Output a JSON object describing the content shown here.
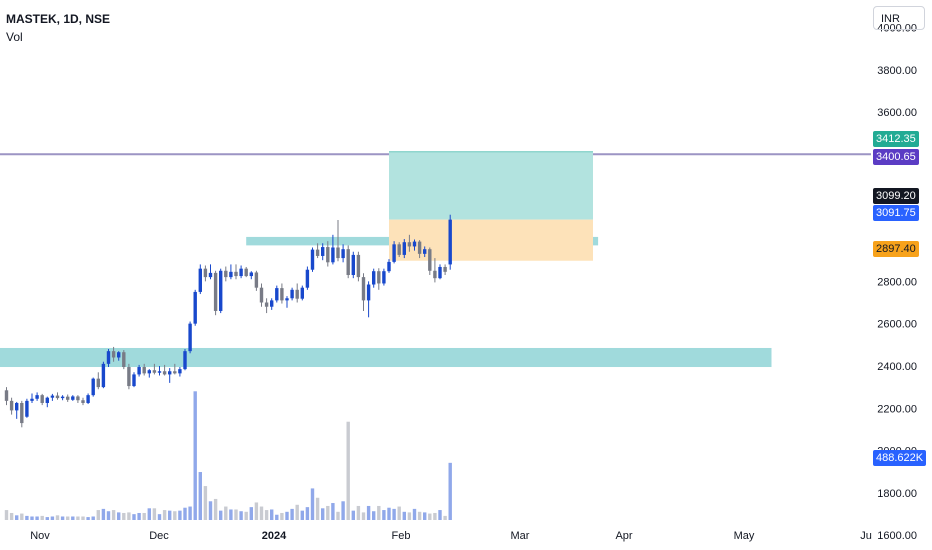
{
  "legend": {
    "symbol": "MASTEK, 1D, NSE",
    "volume_label": "Vol"
  },
  "currency": "INR",
  "price_axis": {
    "ticks": [
      "4000.00",
      "3800.00",
      "3600.00",
      "2800.00",
      "2600.00",
      "2400.00",
      "2200.00",
      "2000.00",
      "1800.00",
      "1600.00"
    ],
    "tick_values": [
      4000,
      3800,
      3600,
      2800,
      2600,
      2400,
      2200,
      2000,
      1800,
      1600
    ]
  },
  "time_axis": {
    "labels": [
      "Nov",
      "Dec",
      "2024",
      "Feb",
      "Mar",
      "Apr",
      "May",
      "Ju"
    ]
  },
  "badges": {
    "target": "3412.35",
    "line": "3400.65",
    "close": "3099.20",
    "last": "3091.75",
    "stop": "2897.40",
    "volume": "488.622K"
  },
  "colors": {
    "up": "#1848cc",
    "down": "#787b86",
    "vol_up": "#90a8ea",
    "vol_down": "#c9cbd1",
    "zone": "#8fd4d6",
    "profit": "#b2e3df",
    "loss": "#fde2b9",
    "line": "#9c94c4"
  },
  "chart_data": {
    "type": "candlestick",
    "title": "MASTEK, 1D, NSE",
    "ylim": [
      1530,
      4130
    ],
    "candles": [
      [
        2285,
        2300,
        2215,
        2235
      ],
      [
        2235,
        2250,
        2170,
        2190
      ],
      [
        2190,
        2230,
        2150,
        2225
      ],
      [
        2225,
        2235,
        2110,
        2130
      ],
      [
        2160,
        2245,
        2155,
        2235
      ],
      [
        2235,
        2270,
        2225,
        2245
      ],
      [
        2245,
        2275,
        2235,
        2262
      ],
      [
        2262,
        2268,
        2215,
        2225
      ],
      [
        2225,
        2255,
        2205,
        2250
      ],
      [
        2250,
        2268,
        2235,
        2260
      ],
      [
        2260,
        2275,
        2240,
        2248
      ],
      [
        2248,
        2262,
        2238,
        2255
      ],
      [
        2255,
        2265,
        2230,
        2240
      ],
      [
        2240,
        2262,
        2235,
        2256
      ],
      [
        2256,
        2262,
        2225,
        2238
      ],
      [
        2238,
        2250,
        2215,
        2225
      ],
      [
        2225,
        2270,
        2220,
        2262
      ],
      [
        2262,
        2345,
        2255,
        2340
      ],
      [
        2340,
        2370,
        2290,
        2300
      ],
      [
        2300,
        2420,
        2295,
        2410
      ],
      [
        2410,
        2480,
        2395,
        2470
      ],
      [
        2470,
        2490,
        2420,
        2440
      ],
      [
        2440,
        2470,
        2425,
        2465
      ],
      [
        2465,
        2475,
        2385,
        2395
      ],
      [
        2395,
        2410,
        2290,
        2305
      ],
      [
        2305,
        2370,
        2300,
        2360
      ],
      [
        2360,
        2405,
        2350,
        2395
      ],
      [
        2395,
        2410,
        2355,
        2365
      ],
      [
        2365,
        2385,
        2345,
        2380
      ],
      [
        2380,
        2410,
        2360,
        2368
      ],
      [
        2368,
        2400,
        2355,
        2375
      ],
      [
        2375,
        2405,
        2355,
        2360
      ],
      [
        2360,
        2390,
        2320,
        2375
      ],
      [
        2375,
        2410,
        2360,
        2365
      ],
      [
        2365,
        2395,
        2350,
        2385
      ],
      [
        2385,
        2480,
        2380,
        2470
      ],
      [
        2470,
        2610,
        2460,
        2600
      ],
      [
        2600,
        2760,
        2590,
        2750
      ],
      [
        2750,
        2880,
        2740,
        2860
      ],
      [
        2860,
        2875,
        2800,
        2820
      ],
      [
        2820,
        2880,
        2810,
        2840
      ],
      [
        2840,
        2850,
        2640,
        2660
      ],
      [
        2660,
        2860,
        2650,
        2850
      ],
      [
        2850,
        2870,
        2800,
        2820
      ],
      [
        2820,
        2880,
        2810,
        2845
      ],
      [
        2845,
        2880,
        2810,
        2825
      ],
      [
        2825,
        2875,
        2815,
        2860
      ],
      [
        2860,
        2868,
        2820,
        2825
      ],
      [
        2825,
        2848,
        2810,
        2842
      ],
      [
        2842,
        2850,
        2755,
        2770
      ],
      [
        2770,
        2790,
        2680,
        2700
      ],
      [
        2700,
        2720,
        2650,
        2680
      ],
      [
        2680,
        2720,
        2665,
        2710
      ],
      [
        2710,
        2780,
        2700,
        2768
      ],
      [
        2768,
        2790,
        2695,
        2710
      ],
      [
        2710,
        2730,
        2675,
        2720
      ],
      [
        2720,
        2770,
        2710,
        2760
      ],
      [
        2760,
        2790,
        2700,
        2718
      ],
      [
        2718,
        2780,
        2710,
        2770
      ],
      [
        2770,
        2870,
        2760,
        2855
      ],
      [
        2855,
        2960,
        2845,
        2950
      ],
      [
        2950,
        2980,
        2910,
        2920
      ],
      [
        2920,
        2980,
        2900,
        2962
      ],
      [
        2962,
        2990,
        2870,
        2890
      ],
      [
        2890,
        3020,
        2880,
        2960
      ],
      [
        2960,
        3090,
        2895,
        2910
      ],
      [
        2910,
        2975,
        2890,
        2952
      ],
      [
        2952,
        2970,
        2815,
        2830
      ],
      [
        2830,
        2940,
        2815,
        2925
      ],
      [
        2925,
        2940,
        2800,
        2820
      ],
      [
        2820,
        2838,
        2660,
        2710
      ],
      [
        2710,
        2800,
        2630,
        2785
      ],
      [
        2785,
        2860,
        2770,
        2848
      ],
      [
        2848,
        2862,
        2760,
        2790
      ],
      [
        2790,
        2860,
        2780,
        2848
      ],
      [
        2848,
        2905,
        2840,
        2892
      ],
      [
        2892,
        2990,
        2885,
        2975
      ],
      [
        2975,
        2985,
        2915,
        2925
      ],
      [
        2925,
        3000,
        2910,
        2985
      ],
      [
        2985,
        3020,
        2940,
        2965
      ],
      [
        2965,
        2998,
        2945,
        2988
      ],
      [
        2988,
        2995,
        2910,
        2930
      ],
      [
        2930,
        2965,
        2915,
        2952
      ],
      [
        2952,
        2960,
        2830,
        2850
      ],
      [
        2850,
        2910,
        2795,
        2815
      ],
      [
        2815,
        2880,
        2810,
        2868
      ],
      [
        2868,
        2880,
        2830,
        2845
      ],
      [
        2880,
        3115,
        2855,
        3091.75
      ]
    ],
    "volumes_k": [
      85,
      60,
      40,
      55,
      35,
      30,
      30,
      35,
      25,
      30,
      40,
      30,
      30,
      30,
      30,
      30,
      25,
      30,
      85,
      95,
      75,
      85,
      65,
      60,
      65,
      50,
      60,
      60,
      100,
      100,
      50,
      85,
      80,
      75,
      80,
      105,
      115,
      1100,
      410,
      290,
      160,
      180,
      80,
      115,
      90,
      90,
      75,
      70,
      110,
      150,
      115,
      85,
      90,
      45,
      60,
      70,
      95,
      130,
      80,
      110,
      270,
      190,
      100,
      120,
      145,
      70,
      160,
      840,
      80,
      120,
      65,
      120,
      75,
      120,
      85,
      105,
      95,
      115,
      70,
      65,
      95,
      70,
      65,
      55,
      60,
      85,
      35,
      488.622
    ],
    "horizontal_line": 3400.65,
    "zones": [
      {
        "price_top": 3010,
        "price_bottom": 2970,
        "start_bar": 47,
        "end_bar": 116
      },
      {
        "price_top": 2485,
        "price_bottom": 2395,
        "start_bar": -6,
        "end_bar": 150
      }
    ],
    "position": {
      "entry": 3091.75,
      "target": 3412.35,
      "stop": 2897.4,
      "start_bar": 75,
      "end_bar": 115
    }
  }
}
